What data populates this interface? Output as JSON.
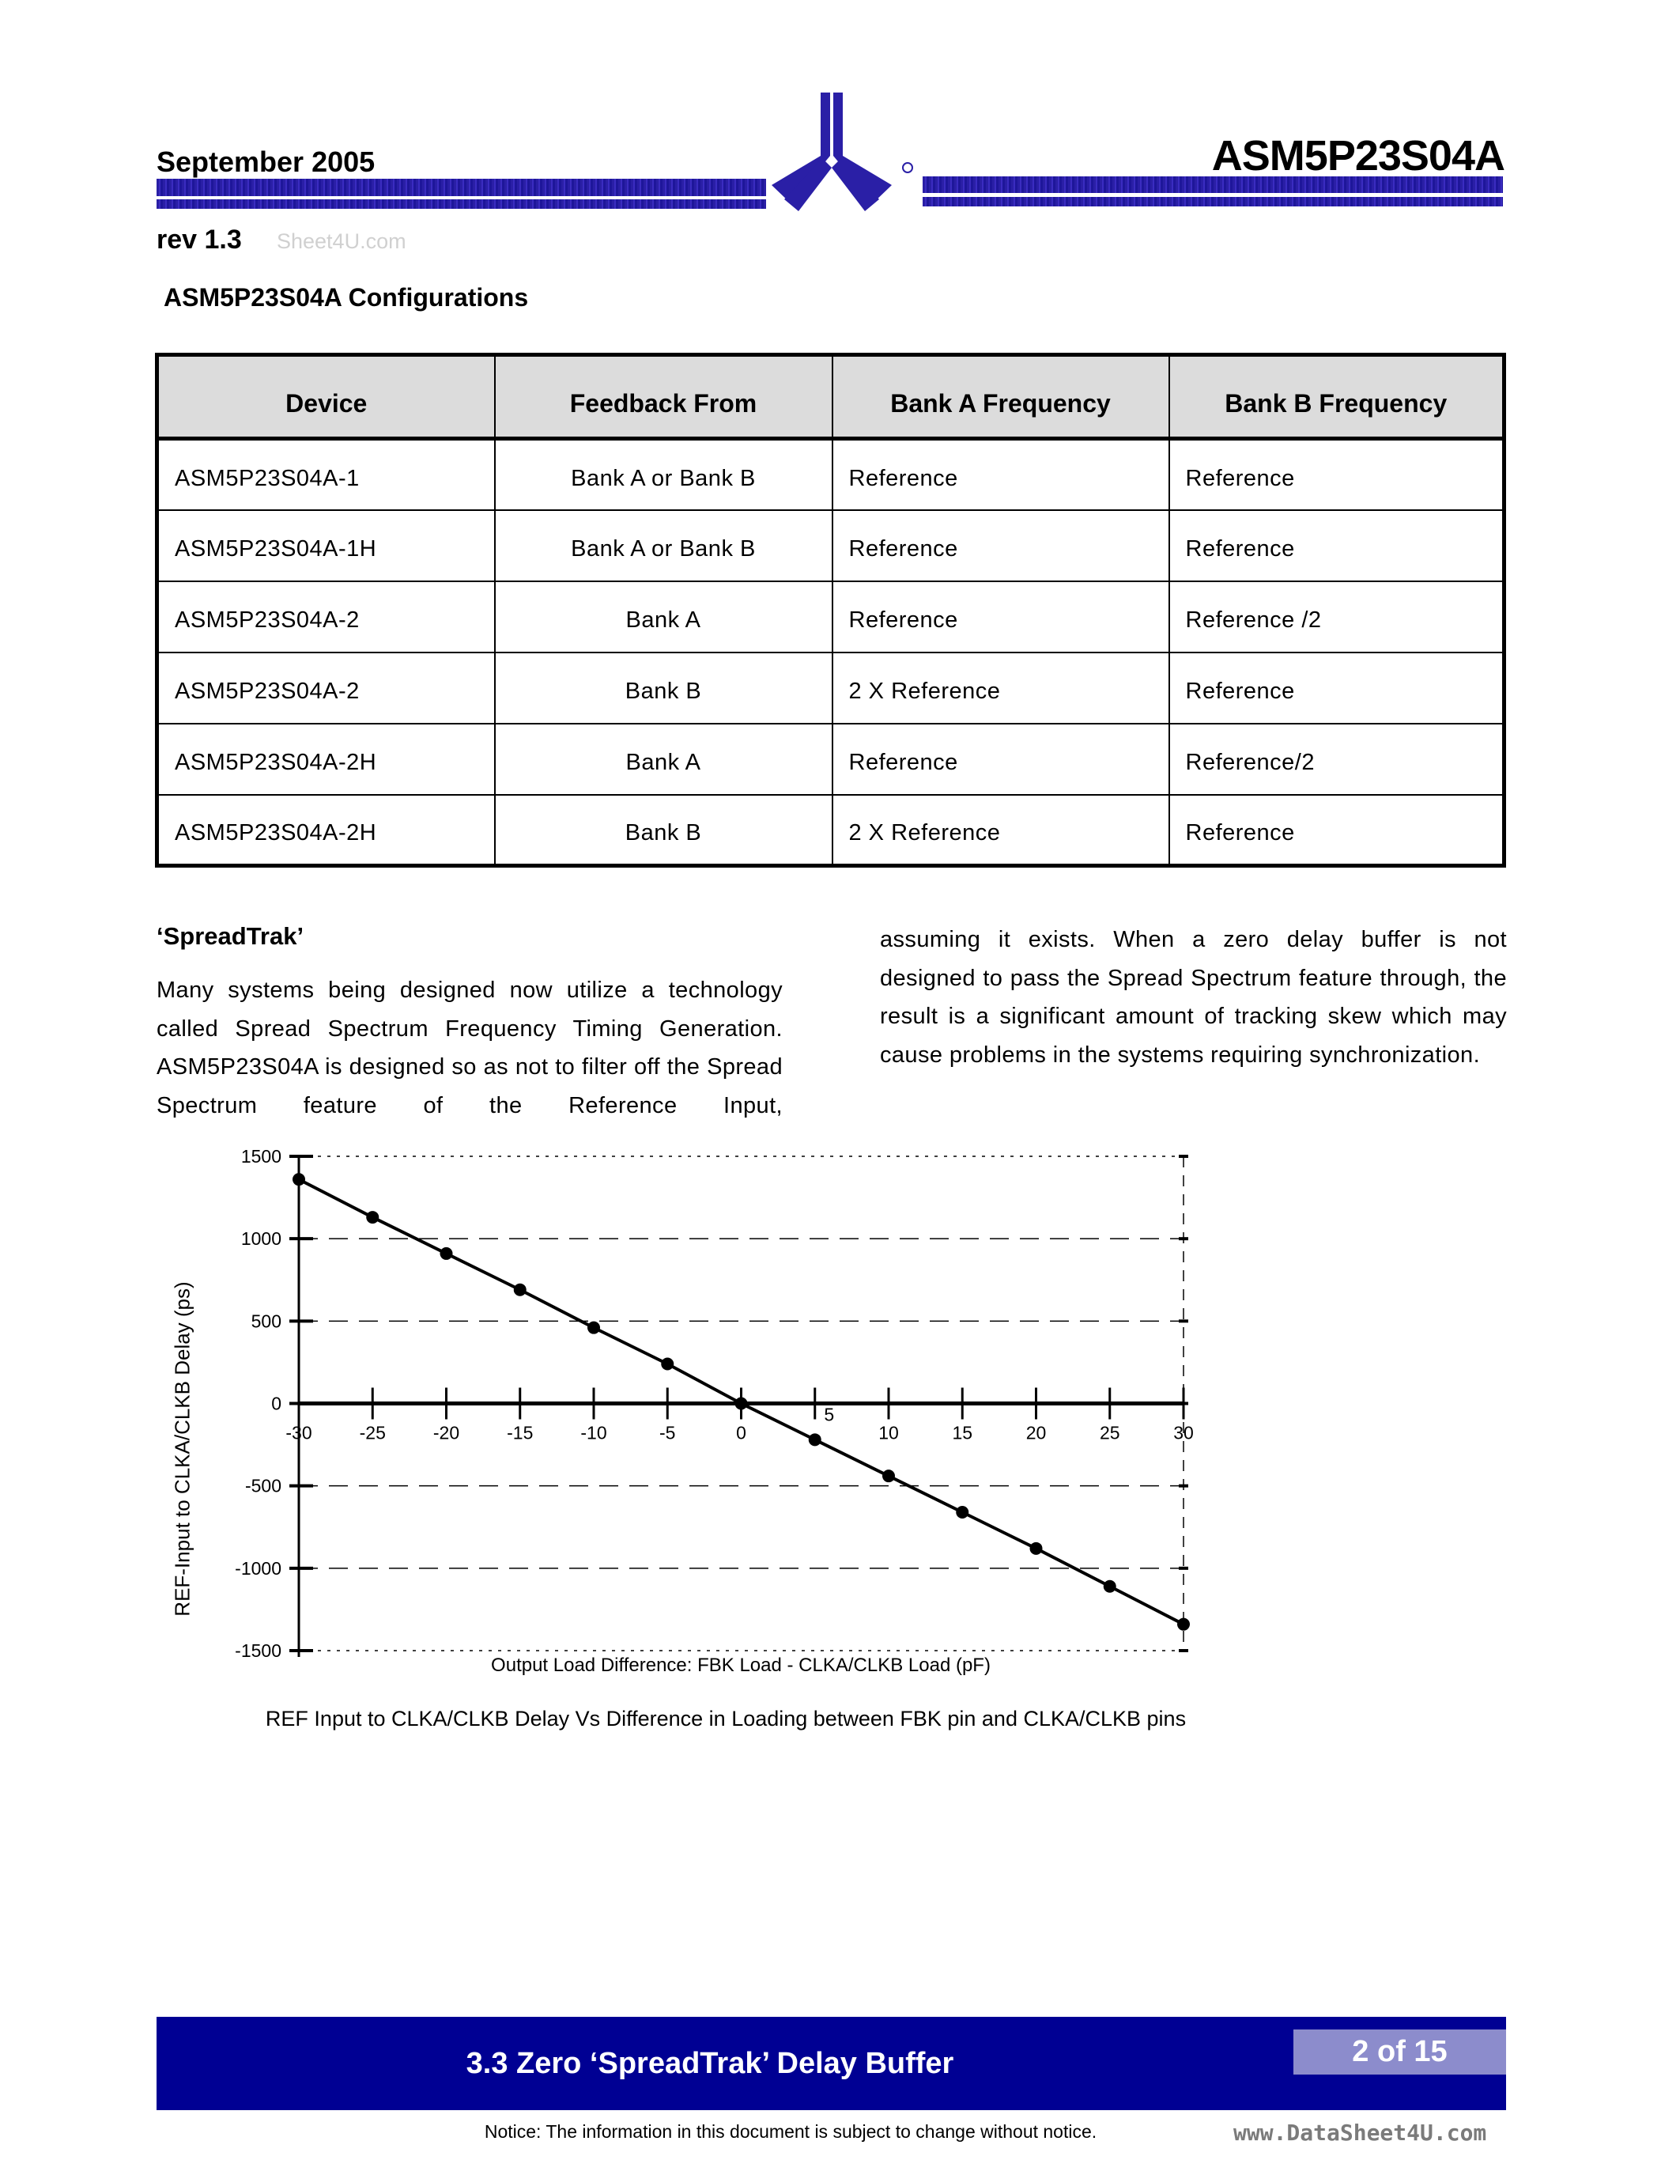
{
  "header": {
    "date": "September 2005",
    "part_number": "ASM5P23S04A",
    "revision": "rev 1.3",
    "watermark": "Sheet4U.com",
    "brand_color": "#2a1fa6"
  },
  "configurations": {
    "title": "ASM5P23S04A Configurations",
    "columns": [
      "Device",
      "Feedback From",
      "Bank A Frequency",
      "Bank B Frequency"
    ],
    "rows": [
      [
        "ASM5P23S04A-1",
        "Bank A or Bank B",
        "Reference",
        "Reference"
      ],
      [
        "ASM5P23S04A-1H",
        "Bank A or Bank B",
        "Reference",
        "Reference"
      ],
      [
        "ASM5P23S04A-2",
        "Bank A",
        "Reference",
        "Reference /2"
      ],
      [
        "ASM5P23S04A-2",
        "Bank B",
        "2 X Reference",
        "Reference"
      ],
      [
        "ASM5P23S04A-2H",
        "Bank A",
        "Reference",
        "Reference/2"
      ],
      [
        "ASM5P23S04A-2H",
        "Bank B",
        "2 X Reference",
        "Reference"
      ]
    ]
  },
  "spreadtrak": {
    "heading": "‘SpreadTrak’",
    "para_left": "Many systems being designed now utilize a technology called Spread Spectrum Frequency Timing Generation. ASM5P23S04A is designed so as not to filter off the Spread Spectrum feature of the Reference Input,",
    "para_right": "assuming it exists. When a zero delay buffer is not designed to pass the Spread Spectrum feature through, the result is a significant amount of tracking skew which may cause problems in the systems requiring synchronization."
  },
  "chart_data": {
    "type": "line",
    "title": "",
    "caption": "REF Input to CLKA/CLKB Delay Vs Difference in Loading between FBK pin and CLKA/CLKB pins",
    "xlabel": "Output Load Difference: FBK Load - CLKA/CLKB Load (pF)",
    "ylabel": "REF-Input to CLKA/CLKB Delay (ps)",
    "xlim": [
      -30,
      30
    ],
    "ylim": [
      -1500,
      1500
    ],
    "xticks": [
      "-30",
      "-25",
      "-20",
      "-15",
      "-10",
      "-5",
      "0",
      "5",
      "10",
      "15",
      "20",
      "25",
      "30"
    ],
    "yticks": [
      "1500",
      "1000",
      "500",
      "0",
      "-500",
      "-1000",
      "-1500"
    ],
    "grid": true,
    "series": [
      {
        "name": "Delay",
        "x": [
          -30,
          -25,
          -20,
          -15,
          -10,
          -5,
          0,
          5,
          10,
          15,
          20,
          25,
          30
        ],
        "y": [
          1360,
          1130,
          910,
          690,
          460,
          240,
          0,
          -220,
          -440,
          -660,
          -880,
          -1110,
          -1340
        ]
      }
    ]
  },
  "footer": {
    "title": "3.3 Zero ‘SpreadTrak’ Delay Buffer",
    "page": "2 of 15",
    "watermark": "www.DataSheet4U.com",
    "notice": "Notice:  The information in this document is subject to change without notice.",
    "band_color": "#000093"
  }
}
